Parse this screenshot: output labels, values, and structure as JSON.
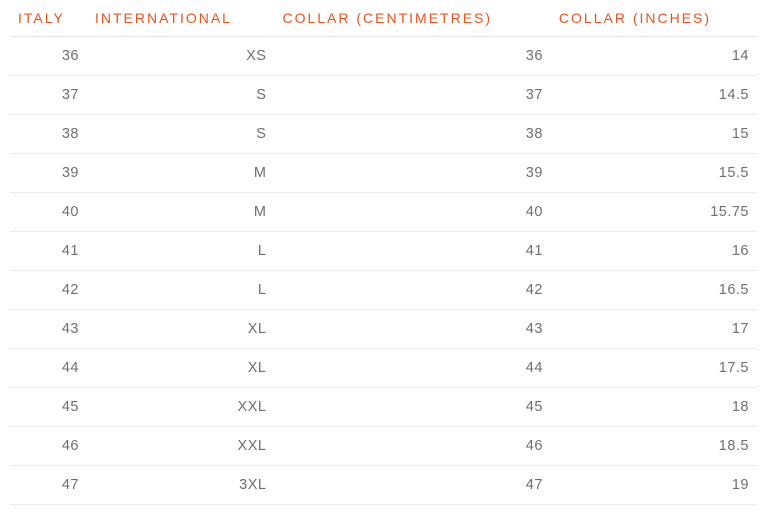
{
  "table": {
    "type": "table",
    "header_color": "#e8531f",
    "header_fontsize": 14,
    "header_letter_spacing": 2,
    "cell_color": "#6f6f6f",
    "cell_fontsize": 14.5,
    "border_color": "#ececec",
    "background_color": "#ffffff",
    "text_align": "right",
    "columns": [
      "ITALY",
      "INTERNATIONAL",
      "COLLAR (CENTIMETRES)",
      "COLLAR (INCHES)"
    ],
    "rows": [
      [
        "36",
        "XS",
        "36",
        "14"
      ],
      [
        "37",
        "S",
        "37",
        "14.5"
      ],
      [
        "38",
        "S",
        "38",
        "15"
      ],
      [
        "39",
        "M",
        "39",
        "15.5"
      ],
      [
        "40",
        "M",
        "40",
        "15.75"
      ],
      [
        "41",
        "L",
        "41",
        "16"
      ],
      [
        "42",
        "L",
        "42",
        "16.5"
      ],
      [
        "43",
        "XL",
        "43",
        "17"
      ],
      [
        "44",
        "XL",
        "44",
        "17.5"
      ],
      [
        "45",
        "XXL",
        "45",
        "18"
      ],
      [
        "46",
        "XXL",
        "46",
        "18.5"
      ],
      [
        "47",
        "3XL",
        "47",
        "19"
      ]
    ]
  }
}
